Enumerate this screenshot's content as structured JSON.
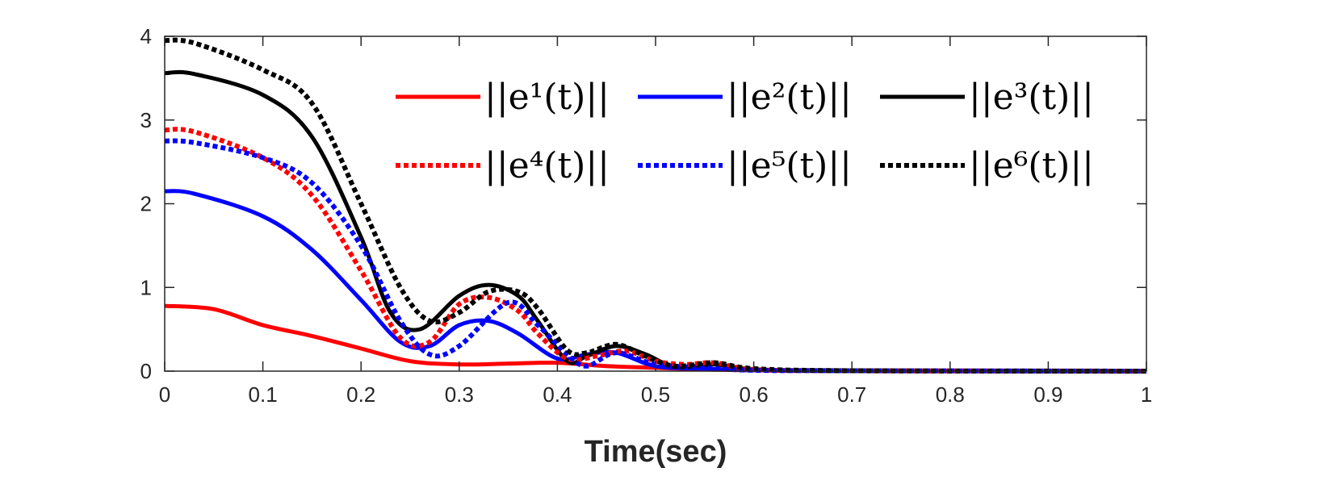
{
  "chart_data": {
    "type": "line",
    "title": "",
    "xlabel": "Time(sec)",
    "ylabel": "",
    "xlim": [
      0,
      1
    ],
    "ylim": [
      0,
      4
    ],
    "xticks": [
      0,
      0.1,
      0.2,
      0.3,
      0.4,
      0.5,
      0.6,
      0.7,
      0.8,
      0.9,
      1
    ],
    "xtick_labels": [
      "0",
      "0.1",
      "0.2",
      "0.3",
      "0.4",
      "0.5",
      "0.6",
      "0.7",
      "0.8",
      "0.9",
      "1"
    ],
    "yticks": [
      0,
      1,
      2,
      3,
      4
    ],
    "ytick_labels": [
      "0",
      "1",
      "2",
      "3",
      "4"
    ],
    "grid": false,
    "legend_position": "top-right",
    "series": [
      {
        "name": "||e¹(t)||",
        "color": "#ff0000",
        "style": "solid",
        "x": [
          0,
          0.05,
          0.1,
          0.15,
          0.2,
          0.25,
          0.3,
          0.35,
          0.4,
          0.45,
          0.5,
          0.55,
          0.6,
          0.7,
          0.8,
          0.9,
          1
        ],
        "y": [
          0.78,
          0.74,
          0.55,
          0.42,
          0.27,
          0.12,
          0.08,
          0.09,
          0.1,
          0.06,
          0.04,
          0.02,
          0.01,
          0.005,
          0.002,
          0.001,
          0
        ]
      },
      {
        "name": "||e²(t)||",
        "color": "#0000ff",
        "style": "solid",
        "x": [
          0,
          0.03,
          0.1,
          0.15,
          0.2,
          0.24,
          0.27,
          0.3,
          0.33,
          0.36,
          0.4,
          0.43,
          0.46,
          0.5,
          0.55,
          0.6,
          0.7,
          1
        ],
        "y": [
          2.15,
          2.12,
          1.85,
          1.45,
          0.85,
          0.35,
          0.3,
          0.55,
          0.6,
          0.45,
          0.15,
          0.2,
          0.22,
          0.06,
          0.03,
          0.01,
          0.005,
          0
        ]
      },
      {
        "name": "||e³(t)||",
        "color": "#000000",
        "style": "solid",
        "x": [
          0,
          0.03,
          0.1,
          0.15,
          0.2,
          0.23,
          0.26,
          0.3,
          0.33,
          0.36,
          0.38,
          0.41,
          0.43,
          0.46,
          0.49,
          0.52,
          0.56,
          0.6,
          0.7,
          1
        ],
        "y": [
          3.56,
          3.55,
          3.3,
          2.8,
          1.6,
          0.7,
          0.5,
          0.9,
          1.03,
          0.9,
          0.6,
          0.12,
          0.18,
          0.3,
          0.2,
          0.05,
          0.08,
          0.02,
          0.005,
          0
        ]
      },
      {
        "name": "||e⁴(t)||",
        "color": "#ff0000",
        "style": "dotted",
        "x": [
          0,
          0.03,
          0.1,
          0.15,
          0.2,
          0.24,
          0.27,
          0.3,
          0.33,
          0.36,
          0.38,
          0.41,
          0.44,
          0.47,
          0.5,
          0.53,
          0.56,
          0.6,
          0.7,
          1
        ],
        "y": [
          2.88,
          2.86,
          2.55,
          2.1,
          1.2,
          0.4,
          0.35,
          0.8,
          0.88,
          0.72,
          0.45,
          0.15,
          0.18,
          0.24,
          0.12,
          0.08,
          0.1,
          0.02,
          0.005,
          0
        ]
      },
      {
        "name": "||e⁵(t)||",
        "color": "#0000ff",
        "style": "dotted",
        "x": [
          0,
          0.03,
          0.1,
          0.15,
          0.2,
          0.24,
          0.27,
          0.3,
          0.35,
          0.38,
          0.41,
          0.43,
          0.46,
          0.5,
          0.55,
          0.6,
          0.7,
          1
        ],
        "y": [
          2.75,
          2.73,
          2.55,
          2.25,
          1.5,
          0.6,
          0.2,
          0.3,
          0.82,
          0.55,
          0.2,
          0.06,
          0.22,
          0.08,
          0.04,
          0.01,
          0.005,
          0
        ]
      },
      {
        "name": "||e⁶(t)||",
        "color": "#000000",
        "style": "dotted",
        "x": [
          0,
          0.03,
          0.1,
          0.15,
          0.2,
          0.24,
          0.27,
          0.3,
          0.33,
          0.36,
          0.38,
          0.41,
          0.43,
          0.46,
          0.49,
          0.52,
          0.56,
          0.6,
          0.7,
          1
        ],
        "y": [
          3.95,
          3.92,
          3.6,
          3.2,
          2.0,
          1.0,
          0.6,
          0.7,
          0.95,
          0.95,
          0.75,
          0.25,
          0.22,
          0.32,
          0.18,
          0.06,
          0.1,
          0.03,
          0.005,
          0
        ]
      }
    ]
  }
}
